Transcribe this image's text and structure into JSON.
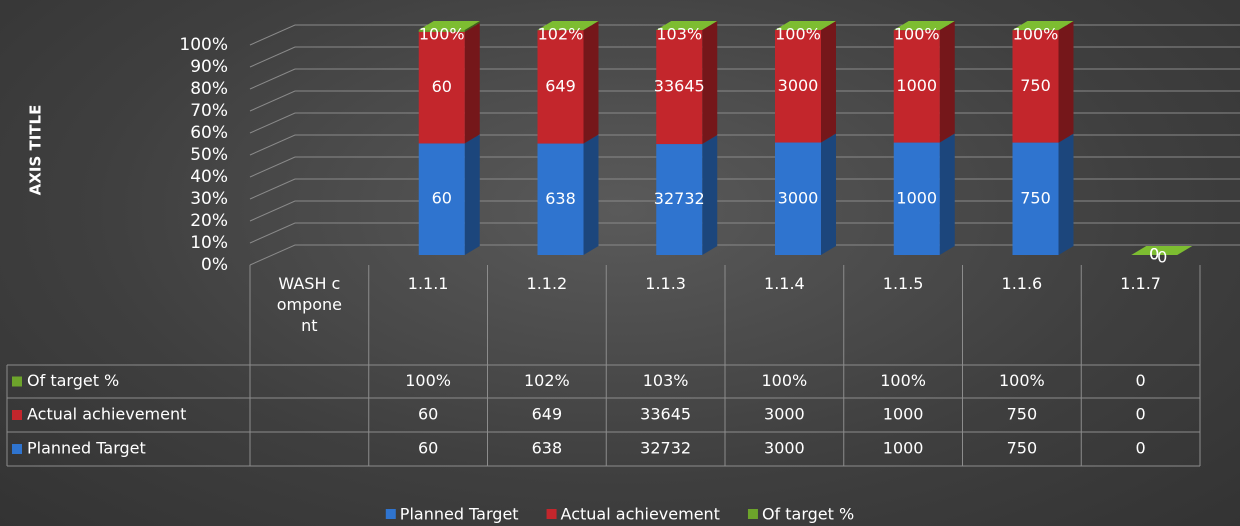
{
  "chart_data": {
    "type": "stacked-bar-100",
    "axis_label_y": "AXIS TITLE",
    "categories": [
      "WASH component",
      "1.1.1",
      "1.1.2",
      "1.1.3",
      "1.1.4",
      "1.1.5",
      "1.1.6",
      "1.1.7"
    ],
    "series": [
      {
        "name": "Planned Target",
        "color": "#2f74cf",
        "values": [
          null,
          60,
          638,
          32732,
          3000,
          1000,
          750,
          0
        ]
      },
      {
        "name": "Actual achievement",
        "color": "#c3262c",
        "values": [
          null,
          60,
          649,
          33645,
          3000,
          1000,
          750,
          0
        ]
      },
      {
        "name": "Of target %",
        "color": "#6da42b",
        "values": [
          null,
          1,
          1.02,
          1.03,
          1,
          1,
          1,
          0
        ],
        "value_labels": [
          null,
          "100%",
          "102%",
          "103%",
          "100%",
          "100%",
          "100%",
          "0"
        ]
      }
    ],
    "ylim": [
      0,
      100
    ],
    "yticks": [
      {
        "value": 0,
        "label": "0%"
      },
      {
        "value": 10,
        "label": "10%"
      },
      {
        "value": 20,
        "label": "20%"
      },
      {
        "value": 30,
        "label": "30%"
      },
      {
        "value": 40,
        "label": "40%"
      },
      {
        "value": 50,
        "label": "50%"
      },
      {
        "value": 60,
        "label": "60%"
      },
      {
        "value": 70,
        "label": "70%"
      },
      {
        "value": 80,
        "label": "80%"
      },
      {
        "value": 90,
        "label": "90%"
      },
      {
        "value": 100,
        "label": "100%"
      }
    ],
    "grid": true,
    "legend": "bottom"
  }
}
